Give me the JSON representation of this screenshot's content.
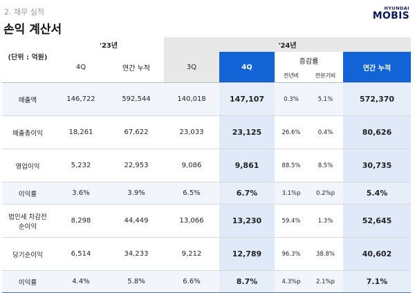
{
  "header": {
    "section": "2. 재무 실적",
    "title": "손익 계산서"
  },
  "logo": {
    "line1": "HYUNDAI",
    "line2": "MOBIS"
  },
  "table": {
    "unit": "(단위 : 억원)",
    "year_prev": "'23년",
    "year_curr": "'24년",
    "col_4q": "4Q",
    "col_annual": "연간 누적",
    "col_3q": "3Q",
    "col_4q_curr": "4Q",
    "col_change": "증감률",
    "col_yoy": "전년비",
    "col_qoq": "전분기비",
    "col_annual_curr": "연간 누적",
    "rows": [
      {
        "label": "매출액",
        "v": [
          "146,722",
          "592,544",
          "140,018",
          "147,107",
          "0.3%",
          "5.1%",
          "572,370"
        ]
      },
      {
        "label": "매출총이익",
        "v": [
          "18,261",
          "67,622",
          "23,033",
          "23,125",
          "26.6%",
          "0.4%",
          "80,626"
        ]
      },
      {
        "label": "영업이익",
        "v": [
          "5,232",
          "22,953",
          "9,086",
          "9,861",
          "88.5%",
          "8.5%",
          "30,735"
        ]
      },
      {
        "label": "이익률",
        "v": [
          "3.6%",
          "3.9%",
          "6.5%",
          "6.7%",
          "3.1%p",
          "0.2%p",
          "5.4%"
        ]
      },
      {
        "label1": "법인세 차감전",
        "label2": "순이익",
        "v": [
          "8,298",
          "44,449",
          "13,066",
          "13,230",
          "59.4%",
          "1.3%",
          "52,645"
        ]
      },
      {
        "label": "당기순이익",
        "v": [
          "6,514",
          "34,233",
          "9,212",
          "12,789",
          "96.3%",
          "38.8%",
          "40,602"
        ]
      },
      {
        "label": "이익률",
        "v": [
          "4.4%",
          "5.8%",
          "6.6%",
          "8.7%",
          "4.3%p",
          "2.1%p",
          "7.1%"
        ]
      }
    ]
  }
}
